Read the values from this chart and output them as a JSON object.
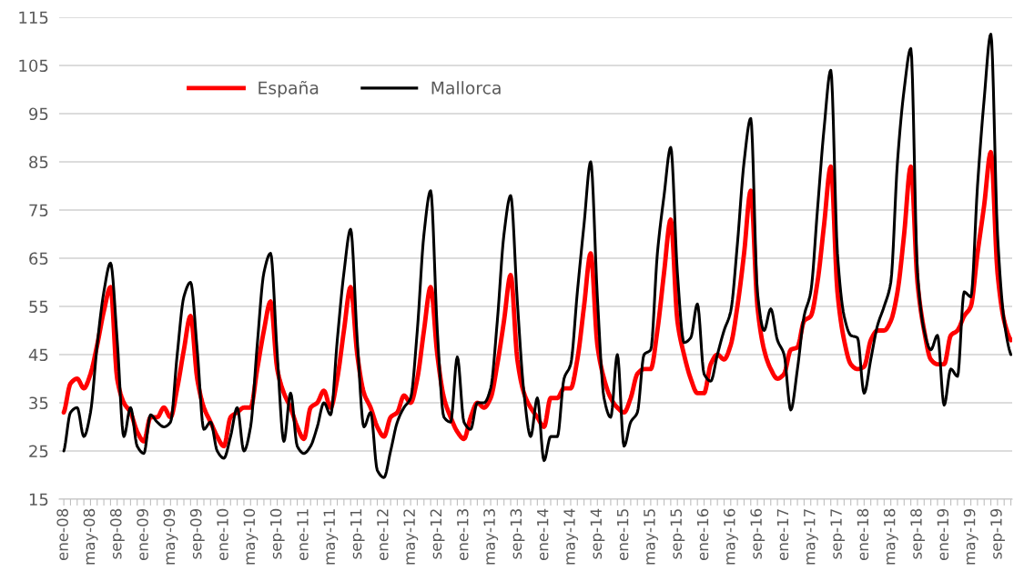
{
  "chart_data": {
    "type": "line",
    "categories": [
      "ene-08",
      null,
      null,
      null,
      "may-08",
      null,
      null,
      null,
      "sep-08",
      null,
      null,
      null,
      "ene-09",
      null,
      null,
      null,
      "may-09",
      null,
      null,
      null,
      "sep-09",
      null,
      null,
      null,
      "ene-10",
      null,
      null,
      null,
      "may-10",
      null,
      null,
      null,
      "sep-10",
      null,
      null,
      null,
      "ene-11",
      null,
      null,
      null,
      "may-11",
      null,
      null,
      null,
      "sep-11",
      null,
      null,
      null,
      "ene-12",
      null,
      null,
      null,
      "may-12",
      null,
      null,
      null,
      "sep-12",
      null,
      null,
      null,
      "ene-13",
      null,
      null,
      null,
      "may-13",
      null,
      null,
      null,
      "sep-13",
      null,
      null,
      null,
      "ene-14",
      null,
      null,
      null,
      "may-14",
      null,
      null,
      null,
      "sep-14",
      null,
      null,
      null,
      "ene-15",
      null,
      null,
      null,
      "may-15",
      null,
      null,
      null,
      "sep-15",
      null,
      null,
      null,
      "ene-16",
      null,
      null,
      null,
      "may-16",
      null,
      null,
      null,
      "sep-16",
      null,
      null,
      null,
      "ene-17",
      null,
      null,
      null,
      "may-17",
      null,
      null,
      null,
      "sep-17",
      null,
      null,
      null,
      "ene-18",
      null,
      null,
      null,
      "may-18",
      null,
      null,
      null,
      "sep-18",
      null,
      null,
      null,
      "ene-19",
      null,
      null,
      null,
      "may-19",
      null,
      null,
      null,
      "sep-19",
      null,
      null
    ],
    "series": [
      {
        "name": "España",
        "color": "#ff0000",
        "values": [
          33,
          39,
          40,
          38,
          41,
          47,
          54,
          59,
          40,
          35,
          33,
          29,
          27,
          32,
          32,
          34,
          32,
          38,
          46,
          53,
          40,
          34,
          31,
          28,
          26,
          32,
          33,
          34,
          34,
          42,
          50,
          56,
          42,
          37,
          34,
          30,
          27.5,
          34,
          35,
          37.5,
          34,
          40,
          50,
          59,
          45,
          37,
          34,
          30,
          28,
          32,
          33,
          36.5,
          35,
          40,
          50,
          59,
          45,
          36,
          32,
          29,
          27.5,
          32,
          35,
          34,
          36,
          43,
          52,
          61.5,
          44,
          37,
          34,
          32,
          30,
          36,
          36,
          38,
          38,
          44,
          55,
          66,
          47,
          40,
          36,
          34,
          33,
          36,
          41,
          42,
          42,
          50,
          62,
          73,
          52,
          45,
          40,
          37,
          37,
          43,
          45,
          44,
          47,
          55,
          66,
          79,
          55,
          46,
          42,
          40,
          41,
          46,
          46.5,
          52,
          53,
          60,
          72,
          84,
          58,
          48,
          43,
          42,
          42.5,
          48,
          50,
          50,
          52,
          58,
          70,
          84,
          60,
          50,
          44,
          43,
          43,
          49,
          50,
          53,
          55,
          66,
          76,
          87,
          62,
          52,
          48
        ]
      },
      {
        "name": "Mallorca",
        "color": "#000000",
        "values": [
          25,
          33,
          34,
          28,
          33,
          47,
          58,
          64,
          48,
          28,
          34,
          26,
          24.5,
          32.5,
          31,
          30,
          31,
          45,
          57,
          60,
          46,
          29.5,
          31,
          25,
          23.5,
          28,
          34,
          25,
          30,
          47,
          62,
          66,
          45,
          27,
          37,
          26,
          24.5,
          26,
          30,
          35,
          32.5,
          48,
          62,
          71,
          48,
          30,
          33,
          21,
          19.5,
          25,
          31,
          34,
          36,
          50,
          70,
          79,
          50,
          32,
          31,
          44.5,
          31,
          29.5,
          35,
          35,
          38,
          52,
          70,
          78,
          56,
          37,
          28,
          36,
          23,
          28,
          28,
          40,
          43,
          58,
          72,
          85,
          57,
          36,
          32,
          45,
          26,
          31,
          33,
          45,
          46,
          66,
          78,
          88,
          62,
          47.5,
          48.5,
          55.5,
          41,
          39.5,
          45,
          50,
          54,
          68,
          85,
          94,
          58,
          50,
          54.5,
          48,
          45,
          33.5,
          42,
          53,
          58,
          75,
          92,
          104,
          66,
          53,
          49,
          48.5,
          37,
          44,
          51,
          55,
          60,
          85,
          100,
          108.5,
          62,
          50,
          46,
          49,
          34.5,
          42,
          40.5,
          58,
          57,
          80,
          98,
          111.5,
          70,
          52,
          45
        ]
      }
    ],
    "ylim": [
      15,
      115
    ],
    "yticks": [
      15,
      25,
      35,
      45,
      55,
      65,
      75,
      85,
      95,
      105,
      115
    ],
    "grid": "y",
    "legend": "top left",
    "marker": "none",
    "line_style": "solid"
  }
}
